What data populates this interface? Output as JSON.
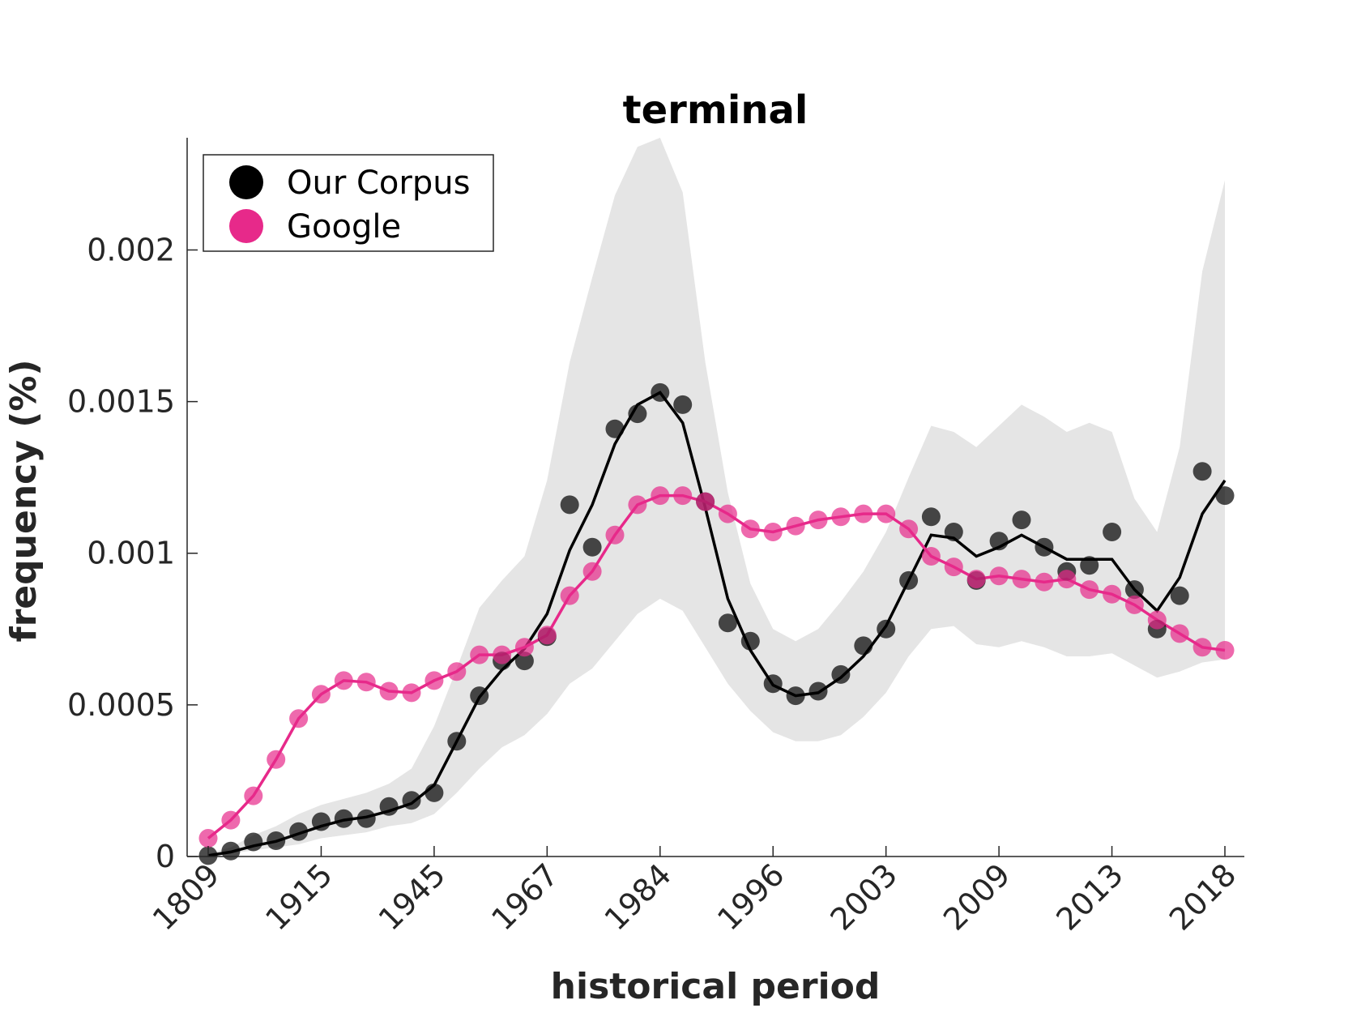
{
  "chart_data": {
    "type": "line",
    "title": "terminal",
    "xlabel": "historical period",
    "ylabel": "frequency (%)",
    "ylim": [
      0,
      0.00237
    ],
    "yticks": [
      0,
      0.0005,
      0.001,
      0.0015,
      0.002
    ],
    "ytick_labels": [
      "0",
      "0.0005",
      "0.001",
      "0.0015",
      "0.002"
    ],
    "xtick_labels": [
      "1809",
      "1915",
      "1945",
      "1967",
      "1984",
      "1996",
      "2003",
      "2009",
      "2013",
      "2018"
    ],
    "xtick_index": [
      0,
      5,
      10,
      15,
      20,
      25,
      30,
      35,
      40,
      45
    ],
    "n_points": 46,
    "legend_position": "top-left",
    "grid": false,
    "colors": {
      "corpus": "#000000",
      "google": "#e7298a",
      "band": "#e5e5e5"
    },
    "series": [
      {
        "name": "Our Corpus",
        "role": "points",
        "values": [
          3e-06,
          1.8e-05,
          4.8e-05,
          5.2e-05,
          8.2e-05,
          0.000115,
          0.000125,
          0.000125,
          0.000165,
          0.000185,
          0.00021,
          0.00038,
          0.00053,
          0.000645,
          0.000645,
          0.000725,
          0.00116,
          0.00102,
          0.00141,
          0.00146,
          0.00153,
          0.00149,
          0.00117,
          0.00077,
          0.00071,
          0.00057,
          0.00053,
          0.000545,
          0.0006,
          0.000695,
          0.00075,
          0.00091,
          0.00112,
          0.00107,
          0.00091,
          0.00104,
          0.00111,
          0.00102,
          0.00094,
          0.00096,
          0.00107,
          0.00088,
          0.00075,
          0.00086,
          0.00127,
          0.00119
        ]
      },
      {
        "name": "Our Corpus trend",
        "role": "line",
        "values": [
          3e-06,
          1.5e-05,
          3.5e-05,
          5e-05,
          7.5e-05,
          0.0001,
          0.00012,
          0.00013,
          0.00015,
          0.000175,
          0.000235,
          0.00038,
          0.000525,
          0.000615,
          0.000685,
          0.0008,
          0.00101,
          0.00116,
          0.00136,
          0.00149,
          0.00153,
          0.00143,
          0.00115,
          0.00085,
          0.00068,
          0.000565,
          0.00053,
          0.00054,
          0.00059,
          0.00066,
          0.00076,
          0.00091,
          0.00106,
          0.00105,
          0.00099,
          0.00102,
          0.00106,
          0.00102,
          0.00098,
          0.00098,
          0.00098,
          0.00088,
          0.00081,
          0.00092,
          0.00113,
          0.00124
        ]
      },
      {
        "name": "Google",
        "role": "points+line",
        "values": [
          6e-05,
          0.00012,
          0.0002,
          0.00032,
          0.000455,
          0.000535,
          0.00058,
          0.000575,
          0.000545,
          0.00054,
          0.00058,
          0.00061,
          0.000665,
          0.000665,
          0.00069,
          0.00073,
          0.00086,
          0.00094,
          0.00106,
          0.00116,
          0.00119,
          0.00119,
          0.00117,
          0.00113,
          0.00108,
          0.00107,
          0.00109,
          0.00111,
          0.00112,
          0.00113,
          0.00113,
          0.00108,
          0.00099,
          0.000955,
          0.000915,
          0.000925,
          0.000915,
          0.000905,
          0.000915,
          0.00088,
          0.000865,
          0.00083,
          0.00078,
          0.000735,
          0.00069,
          0.00068
        ]
      },
      {
        "name": "Our Corpus range",
        "role": "band",
        "upper": [
          1e-05,
          3e-05,
          7e-05,
          0.0001,
          0.00014,
          0.00017,
          0.00019,
          0.00021,
          0.00024,
          0.00029,
          0.00043,
          0.00062,
          0.00082,
          0.00091,
          0.00099,
          0.00124,
          0.00163,
          0.00191,
          0.00218,
          0.00234,
          0.00237,
          0.00219,
          0.00163,
          0.0012,
          0.0009,
          0.00075,
          0.00071,
          0.00075,
          0.00084,
          0.00094,
          0.00107,
          0.00125,
          0.00142,
          0.0014,
          0.00135,
          0.00142,
          0.00149,
          0.00145,
          0.0014,
          0.00143,
          0.0014,
          0.00118,
          0.00107,
          0.00135,
          0.00193,
          0.00223
        ],
        "lower": [
          0,
          1e-05,
          2e-05,
          3e-05,
          4e-05,
          6e-05,
          7e-05,
          8e-05,
          0.0001,
          0.00011,
          0.00014,
          0.00021,
          0.00029,
          0.00036,
          0.0004,
          0.00047,
          0.00057,
          0.00062,
          0.00071,
          0.0008,
          0.00085,
          0.00081,
          0.00069,
          0.00057,
          0.00048,
          0.00041,
          0.00038,
          0.00038,
          0.0004,
          0.00046,
          0.00054,
          0.00066,
          0.00075,
          0.00076,
          0.0007,
          0.00069,
          0.00071,
          0.00069,
          0.00066,
          0.00066,
          0.00067,
          0.00063,
          0.00059,
          0.00061,
          0.00064,
          0.00065
        ]
      }
    ]
  }
}
